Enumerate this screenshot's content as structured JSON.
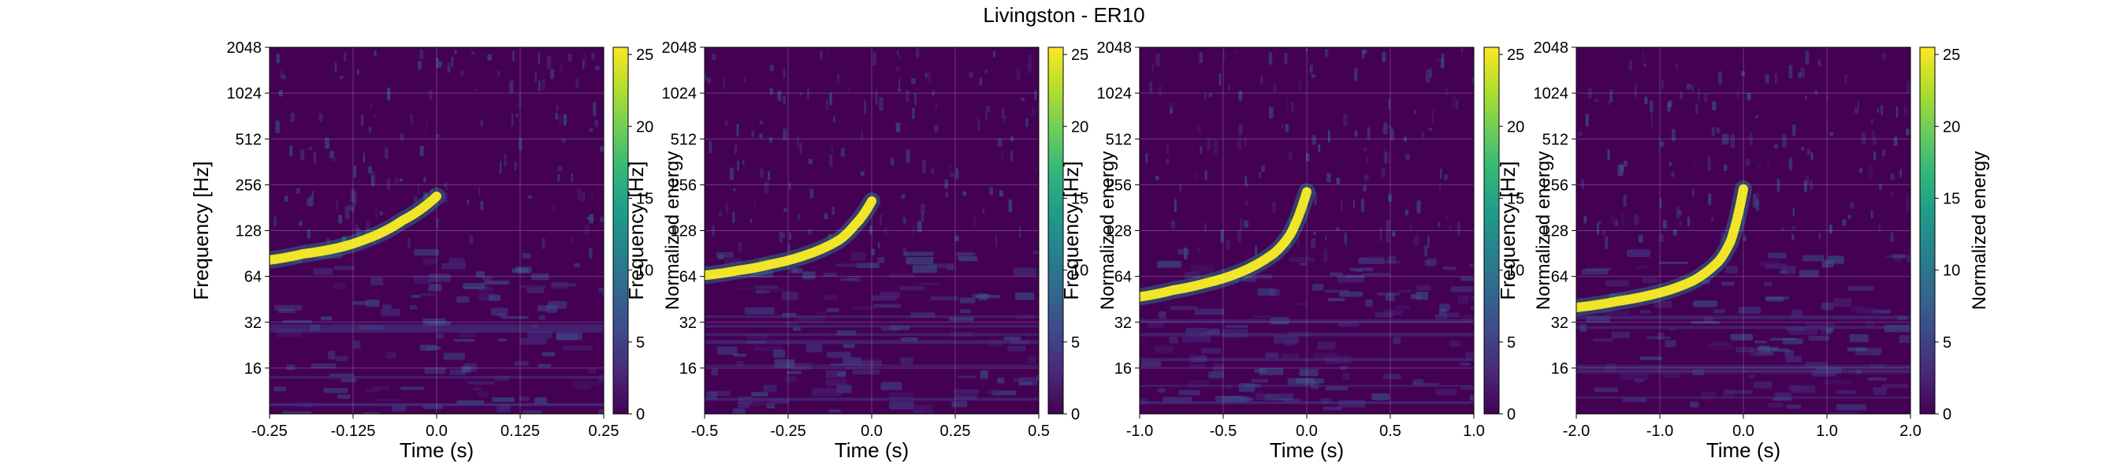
{
  "figure": {
    "title": "Livingston - ER10"
  },
  "colormap": {
    "name": "viridis",
    "stops": [
      "#440154",
      "#482878",
      "#3e4989",
      "#31688e",
      "#26828e",
      "#1f9e89",
      "#35b779",
      "#6ece58",
      "#b5de2b",
      "#fde725"
    ]
  },
  "chart_data": [
    {
      "type": "heatmap",
      "title": "",
      "xlabel": "Time (s)",
      "ylabel": "Frequency [Hz]",
      "colorbar_label": "Normalized energy",
      "xlim": [
        -0.25,
        0.25
      ],
      "ylim": [
        8,
        2048
      ],
      "y_scale": "log2",
      "xticks": [
        "-0.25",
        "-0.125",
        "0.0",
        "0.125",
        "0.25"
      ],
      "xtick_values": [
        -0.25,
        -0.125,
        0,
        0.125,
        0.25
      ],
      "yticks": [
        "16",
        "32",
        "64",
        "128",
        "256",
        "512",
        "1024",
        "2048"
      ],
      "ytick_values": [
        16,
        32,
        64,
        128,
        256,
        512,
        1024,
        2048
      ],
      "color_range": [
        0,
        25.5
      ],
      "colorbar_ticks": [
        "0",
        "5",
        "10",
        "15",
        "20",
        "25"
      ],
      "colorbar_tick_values": [
        0,
        5,
        10,
        15,
        20,
        25
      ],
      "grid": true,
      "chirp_track": {
        "t": [
          -0.25,
          -0.2,
          -0.15,
          -0.1,
          -0.05,
          0.0
        ],
        "f": [
          82,
          90,
          98,
          115,
          150,
          215
        ],
        "energy": 25
      }
    },
    {
      "type": "heatmap",
      "title": "",
      "xlabel": "Time (s)",
      "ylabel": "Frequency [Hz]",
      "colorbar_label": "Normalized energy",
      "xlim": [
        -0.5,
        0.5
      ],
      "ylim": [
        8,
        2048
      ],
      "y_scale": "log2",
      "xticks": [
        "-0.5",
        "-0.25",
        "0.0",
        "0.25",
        "0.5"
      ],
      "xtick_values": [
        -0.5,
        -0.25,
        0,
        0.25,
        0.5
      ],
      "yticks": [
        "16",
        "32",
        "64",
        "128",
        "256",
        "512",
        "1024",
        "2048"
      ],
      "ytick_values": [
        16,
        32,
        64,
        128,
        256,
        512,
        1024,
        2048
      ],
      "color_range": [
        0,
        25.5
      ],
      "colorbar_ticks": [
        "0",
        "5",
        "10",
        "15",
        "20",
        "25"
      ],
      "colorbar_tick_values": [
        0,
        5,
        10,
        15,
        20,
        25
      ],
      "grid": true,
      "chirp_track": {
        "t": [
          -0.5,
          -0.4,
          -0.3,
          -0.2,
          -0.1,
          -0.05,
          0.0
        ],
        "f": [
          65,
          70,
          77,
          88,
          110,
          140,
          200
        ],
        "energy": 25
      }
    },
    {
      "type": "heatmap",
      "title": "",
      "xlabel": "Time (s)",
      "ylabel": "Frequency [Hz]",
      "colorbar_label": "Normalized energy",
      "xlim": [
        -1.0,
        1.0
      ],
      "ylim": [
        8,
        2048
      ],
      "y_scale": "log2",
      "xticks": [
        "-1.0",
        "-0.5",
        "0.0",
        "0.5",
        "1.0"
      ],
      "xtick_values": [
        -1.0,
        -0.5,
        0,
        0.5,
        1.0
      ],
      "yticks": [
        "16",
        "32",
        "64",
        "128",
        "256",
        "512",
        "1024",
        "2048"
      ],
      "ytick_values": [
        16,
        32,
        64,
        128,
        256,
        512,
        1024,
        2048
      ],
      "color_range": [
        0,
        25.5
      ],
      "colorbar_ticks": [
        "0",
        "5",
        "10",
        "15",
        "20",
        "25"
      ],
      "colorbar_tick_values": [
        0,
        5,
        10,
        15,
        20,
        25
      ],
      "grid": true,
      "chirp_track": {
        "t": [
          -1.0,
          -0.8,
          -0.6,
          -0.4,
          -0.2,
          -0.1,
          0.0
        ],
        "f": [
          47,
          52,
          58,
          68,
          90,
          120,
          230
        ],
        "energy": 25
      }
    },
    {
      "type": "heatmap",
      "title": "",
      "xlabel": "Time (s)",
      "ylabel": "Frequency [Hz]",
      "colorbar_label": "Normalized energy",
      "xlim": [
        -2.0,
        2.0
      ],
      "ylim": [
        8,
        2048
      ],
      "y_scale": "log2",
      "xticks": [
        "-2.0",
        "-1.0",
        "0.0",
        "1.0",
        "2.0"
      ],
      "xtick_values": [
        -2.0,
        -1.0,
        0,
        1.0,
        2.0
      ],
      "yticks": [
        "16",
        "32",
        "64",
        "128",
        "256",
        "512",
        "1024",
        "2048"
      ],
      "ytick_values": [
        16,
        32,
        64,
        128,
        256,
        512,
        1024,
        2048
      ],
      "color_range": [
        0,
        25.5
      ],
      "colorbar_ticks": [
        "0",
        "5",
        "10",
        "15",
        "20",
        "25"
      ],
      "colorbar_tick_values": [
        0,
        5,
        10,
        15,
        20,
        25
      ],
      "grid": true,
      "chirp_track": {
        "t": [
          -2.0,
          -1.5,
          -1.0,
          -0.6,
          -0.3,
          -0.15,
          0.0
        ],
        "f": [
          40,
          44,
          50,
          60,
          80,
          110,
          240
        ],
        "energy": 25
      }
    }
  ]
}
